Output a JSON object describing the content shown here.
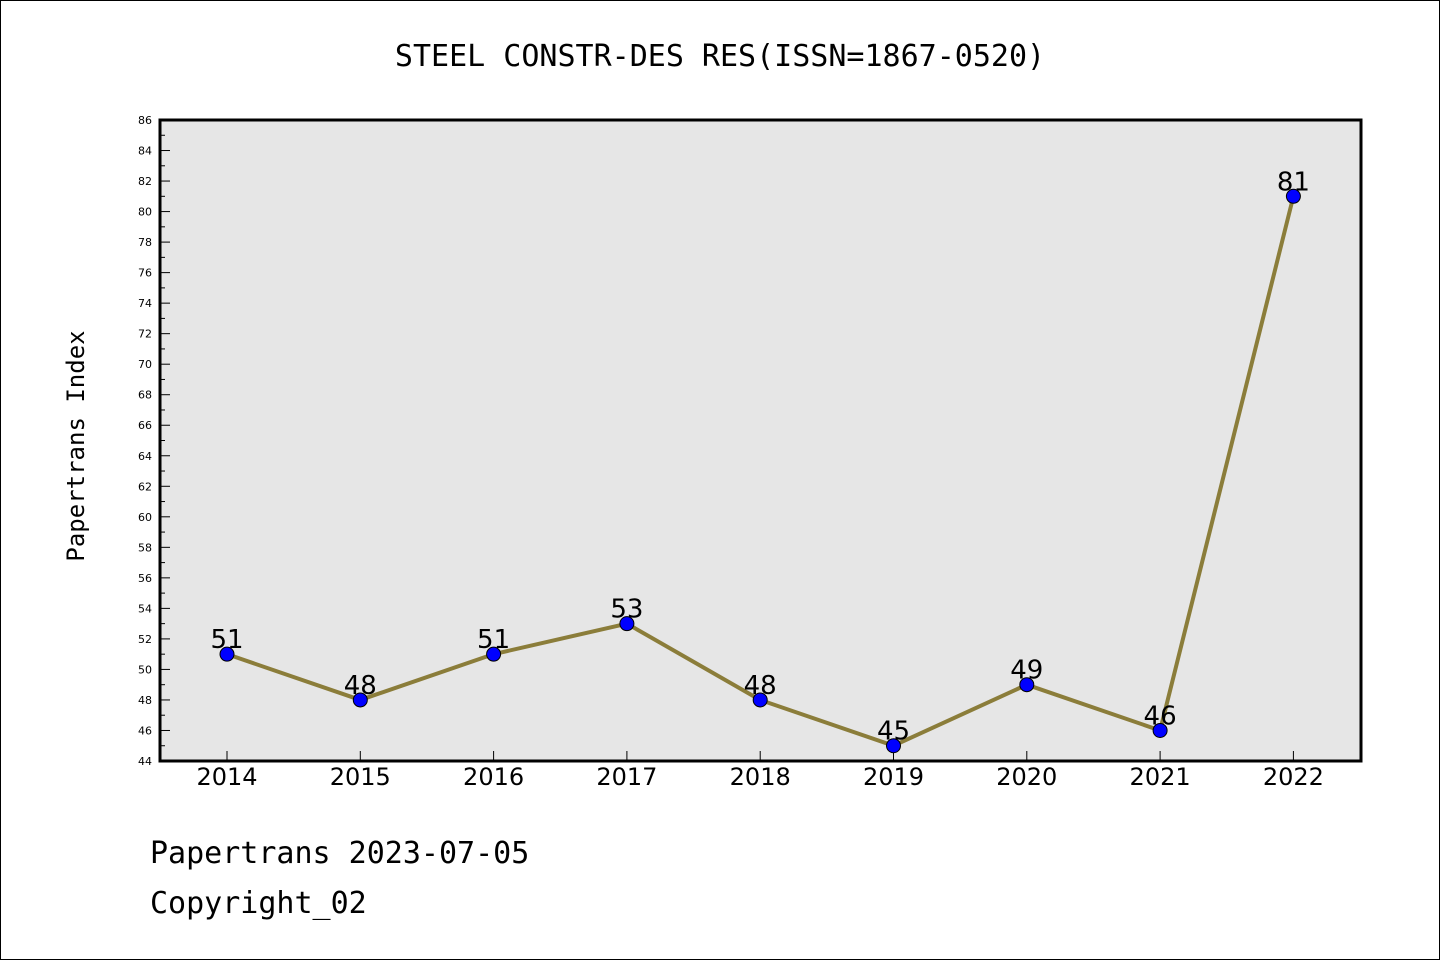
{
  "chart_data": {
    "type": "line",
    "title": "STEEL CONSTR-DES RES(ISSN=1867-0520)",
    "xlabel": "",
    "ylabel": "Papertrans Index",
    "categories": [
      "2014",
      "2015",
      "2016",
      "2017",
      "2018",
      "2019",
      "2020",
      "2021",
      "2022"
    ],
    "series": [
      {
        "values": [
          51,
          48,
          51,
          53,
          48,
          45,
          49,
          46,
          81
        ]
      }
    ],
    "data_labels": [
      "51",
      "48",
      "51",
      "53",
      "48",
      "45",
      "49",
      "46",
      "81"
    ],
    "ylim": [
      44,
      86
    ],
    "yticks": [
      "44",
      "46",
      "48",
      "50",
      "52",
      "54",
      "56",
      "58",
      "60",
      "62",
      "64",
      "66",
      "68",
      "70",
      "72",
      "74",
      "76",
      "78",
      "80",
      "82",
      "84",
      "86"
    ],
    "grid": false,
    "legend": "none",
    "colors": {
      "line": "#8B7D3A",
      "marker": "#0000FF",
      "plot_background": "#E6E6E6"
    }
  },
  "footer": {
    "line1": "Papertrans 2023-07-05",
    "line2": "Copyright_02"
  }
}
